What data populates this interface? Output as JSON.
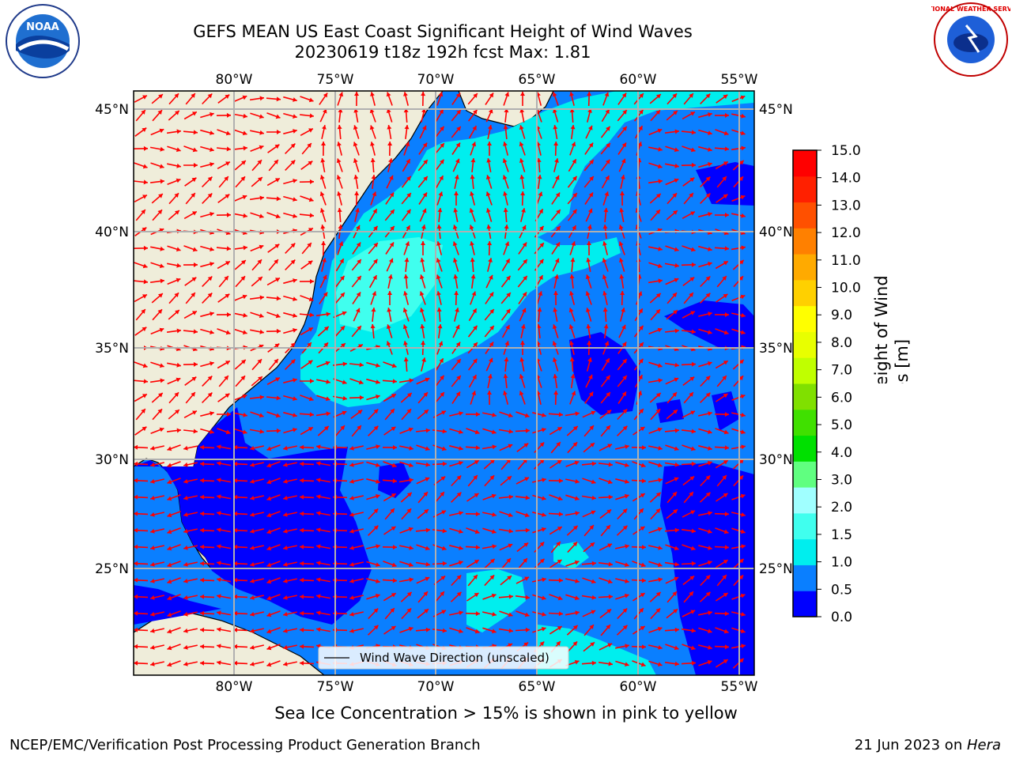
{
  "header": {
    "title_line1": "GEFS MEAN US East Coast Significant Height of Wind Waves",
    "title_line2": "20230619 t18z 192h fcst   Max: 1.81"
  },
  "logos": {
    "left": "NOAA",
    "right": "NATIONAL WEATHER SERVICE"
  },
  "map": {
    "lon_labels": [
      "80°W",
      "75°W",
      "70°W",
      "65°W",
      "60°W",
      "55°W"
    ],
    "lat_labels": [
      "45°N",
      "40°N",
      "35°N",
      "30°N",
      "25°N"
    ],
    "legend_label": "Wind Wave Direction (unscaled)"
  },
  "colorbar": {
    "label_line1": "Significant Height of Wind",
    "label_line2": "Waves [m]",
    "ticks": [
      "0.0",
      "0.5",
      "1.0",
      "1.5",
      "2.0",
      "3.0",
      "4.0",
      "5.0",
      "6.0",
      "7.0",
      "8.0",
      "9.0",
      "10.0",
      "11.0",
      "12.0",
      "13.0",
      "14.0",
      "15.0"
    ],
    "colors": [
      "#0000ff",
      "#0a7fff",
      "#00eeee",
      "#40ffee",
      "#a0ffff",
      "#60ff80",
      "#00e000",
      "#40e000",
      "#80e000",
      "#c0ff00",
      "#e8ff00",
      "#ffff00",
      "#ffd000",
      "#ffaa00",
      "#ff8000",
      "#ff5000",
      "#ff2000",
      "#ff0000"
    ]
  },
  "colors": {
    "land": "#efedda",
    "arrow": "#ff0000",
    "grid": "#b0b0b0"
  },
  "footer": {
    "note": "Sea Ice Concentration > 15% is shown in pink to yellow",
    "left": "NCEP/EMC/Verification Post Processing Product Generation Branch",
    "right_date": "21 Jun 2023 on ",
    "right_host": "Hera"
  }
}
